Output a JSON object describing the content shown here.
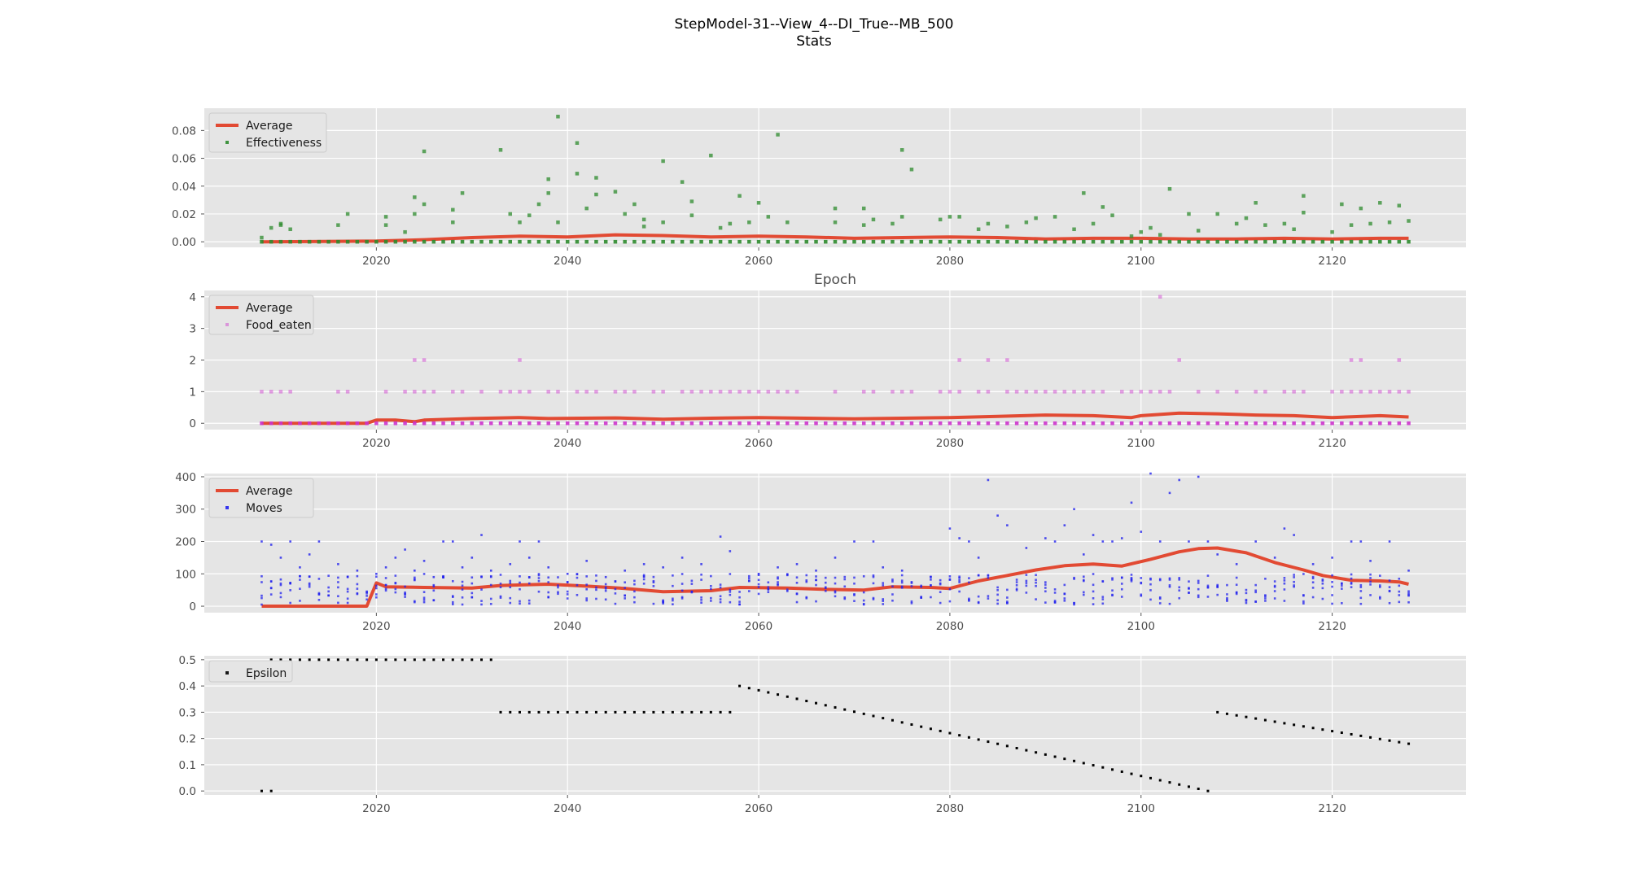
{
  "figure": {
    "title_line1": "StepModel-31--View_4--DI_True--MB_500",
    "title_line2": "Stats"
  },
  "colors": {
    "background": "#ffffff",
    "panel": "#e5e5e5",
    "grid": "#ffffff",
    "average": "#e24a33",
    "effectiveness": "#2e8b2e",
    "food": "#cc33cc",
    "moves": "#2222ee",
    "epsilon": "#000000"
  },
  "chart_data": [
    {
      "type": "scatter",
      "x_range": [
        2008,
        2128
      ],
      "xlim": [
        2002,
        2134
      ],
      "ylim": [
        -0.004,
        0.096
      ],
      "xticks": [
        2020,
        2040,
        2060,
        2080,
        2100,
        2120
      ],
      "yticks": [
        "0.00",
        "0.02",
        "0.04",
        "0.06",
        "0.08"
      ],
      "xlabel": "Epoch",
      "ylabel": "",
      "legend": [
        "Average",
        "Effectiveness"
      ],
      "legend_position": "upper-left",
      "grid": true,
      "series": [
        {
          "name": "Average",
          "kind": "line",
          "values_note": "",
          "x": [
            2008,
            2020,
            2025,
            2030,
            2035,
            2040,
            2045,
            2050,
            2055,
            2060,
            2065,
            2070,
            2075,
            2080,
            2085,
            2090,
            2095,
            2100,
            2105,
            2110,
            2115,
            2120,
            2125,
            2128
          ],
          "y": [
            0.0,
            0.0005,
            0.0015,
            0.003,
            0.004,
            0.0035,
            0.005,
            0.0045,
            0.0035,
            0.004,
            0.0035,
            0.0025,
            0.003,
            0.0035,
            0.003,
            0.002,
            0.0025,
            0.0025,
            0.002,
            0.002,
            0.0025,
            0.002,
            0.0025,
            0.0025
          ]
        },
        {
          "name": "Effectiveness",
          "kind": "scatter",
          "x": [
            2008,
            2009,
            2010,
            2010,
            2011,
            2016,
            2017,
            2021,
            2021,
            2023,
            2024,
            2024,
            2025,
            2025,
            2028,
            2028,
            2029,
            2033,
            2034,
            2035,
            2036,
            2037,
            2038,
            2038,
            2039,
            2039,
            2041,
            2041,
            2042,
            2043,
            2043,
            2045,
            2046,
            2047,
            2048,
            2048,
            2050,
            2050,
            2052,
            2053,
            2053,
            2055,
            2056,
            2057,
            2058,
            2059,
            2060,
            2061,
            2062,
            2063,
            2068,
            2068,
            2071,
            2071,
            2072,
            2074,
            2075,
            2075,
            2076,
            2079,
            2080,
            2081,
            2083,
            2084,
            2086,
            2088,
            2089,
            2091,
            2093,
            2094,
            2095,
            2096,
            2097,
            2099,
            2100,
            2101,
            2102,
            2103,
            2105,
            2106,
            2108,
            2110,
            2111,
            2112,
            2113,
            2115,
            2116,
            2117,
            2117,
            2120,
            2121,
            2122,
            2123,
            2124,
            2125,
            2126,
            2127,
            2128
          ],
          "y": [
            0.003,
            0.01,
            0.013,
            0.012,
            0.009,
            0.012,
            0.02,
            0.018,
            0.012,
            0.007,
            0.032,
            0.02,
            0.065,
            0.027,
            0.023,
            0.014,
            0.035,
            0.066,
            0.02,
            0.014,
            0.019,
            0.027,
            0.045,
            0.035,
            0.09,
            0.014,
            0.071,
            0.049,
            0.024,
            0.046,
            0.034,
            0.036,
            0.02,
            0.027,
            0.016,
            0.011,
            0.058,
            0.014,
            0.043,
            0.029,
            0.019,
            0.062,
            0.01,
            0.013,
            0.033,
            0.014,
            0.028,
            0.018,
            0.077,
            0.014,
            0.024,
            0.014,
            0.024,
            0.012,
            0.016,
            0.013,
            0.066,
            0.018,
            0.052,
            0.016,
            0.018,
            0.018,
            0.009,
            0.013,
            0.011,
            0.014,
            0.017,
            0.018,
            0.009,
            0.035,
            0.013,
            0.025,
            0.019,
            0.004,
            0.007,
            0.01,
            0.005,
            0.038,
            0.02,
            0.008,
            0.02,
            0.013,
            0.017,
            0.028,
            0.012,
            0.013,
            0.009,
            0.033,
            0.021,
            0.007,
            0.027,
            0.012,
            0.024,
            0.013,
            0.028,
            0.014,
            0.026,
            0.015
          ]
        }
      ]
    },
    {
      "type": "scatter",
      "x_range": [
        2008,
        2128
      ],
      "xlim": [
        2002,
        2134
      ],
      "ylim": [
        -0.2,
        4.2
      ],
      "xticks": [
        2020,
        2040,
        2060,
        2080,
        2100,
        2120
      ],
      "yticks": [
        "0",
        "1",
        "2",
        "3",
        "4"
      ],
      "legend": [
        "Average",
        "Food_eaten"
      ],
      "legend_position": "upper-left",
      "grid": true,
      "series": [
        {
          "name": "Average",
          "kind": "line",
          "x": [
            2008,
            2019,
            2020,
            2022,
            2024,
            2025,
            2030,
            2035,
            2038,
            2045,
            2050,
            2055,
            2060,
            2065,
            2070,
            2075,
            2080,
            2085,
            2090,
            2095,
            2099,
            2100,
            2104,
            2108,
            2112,
            2116,
            2120,
            2125,
            2128
          ],
          "y": [
            0.0,
            0.0,
            0.1,
            0.1,
            0.05,
            0.1,
            0.15,
            0.18,
            0.15,
            0.17,
            0.13,
            0.16,
            0.18,
            0.16,
            0.14,
            0.16,
            0.18,
            0.22,
            0.26,
            0.24,
            0.18,
            0.24,
            0.32,
            0.3,
            0.26,
            0.24,
            0.18,
            0.24,
            0.2
          ]
        },
        {
          "name": "Food_eaten",
          "kind": "scatter",
          "x": [
            2008,
            2009,
            2010,
            2011,
            2016,
            2017,
            2021,
            2023,
            2024,
            2025,
            2026,
            2028,
            2029,
            2031,
            2033,
            2034,
            2035,
            2036,
            2038,
            2039,
            2041,
            2042,
            2043,
            2045,
            2046,
            2047,
            2049,
            2050,
            2052,
            2053,
            2054,
            2055,
            2056,
            2057,
            2058,
            2059,
            2060,
            2061,
            2062,
            2063,
            2064,
            2068,
            2071,
            2072,
            2074,
            2075,
            2076,
            2079,
            2080,
            2081,
            2083,
            2084,
            2086,
            2087,
            2088,
            2089,
            2090,
            2091,
            2092,
            2093,
            2094,
            2095,
            2096,
            2098,
            2099,
            2100,
            2101,
            2102,
            2103,
            2106,
            2108,
            2110,
            2112,
            2113,
            2115,
            2116,
            2117,
            2120,
            2121,
            2122,
            2123,
            2124,
            2125,
            2126,
            2127,
            2128,
            2024,
            2025,
            2035,
            2081,
            2084,
            2086,
            2104,
            2122,
            2123,
            2127,
            2102
          ],
          "y": [
            1,
            1,
            1,
            1,
            1,
            1,
            1,
            1,
            1,
            1,
            1,
            1,
            1,
            1,
            1,
            1,
            1,
            1,
            1,
            1,
            1,
            1,
            1,
            1,
            1,
            1,
            1,
            1,
            1,
            1,
            1,
            1,
            1,
            1,
            1,
            1,
            1,
            1,
            1,
            1,
            1,
            1,
            1,
            1,
            1,
            1,
            1,
            1,
            1,
            1,
            1,
            1,
            1,
            1,
            1,
            1,
            1,
            1,
            1,
            1,
            1,
            1,
            1,
            1,
            1,
            1,
            1,
            1,
            1,
            1,
            1,
            1,
            1,
            1,
            1,
            1,
            1,
            1,
            1,
            1,
            1,
            1,
            1,
            1,
            1,
            1,
            2,
            2,
            2,
            2,
            2,
            2,
            2,
            2,
            2,
            2,
            4
          ]
        }
      ]
    },
    {
      "type": "scatter",
      "x_range": [
        2008,
        2128
      ],
      "xlim": [
        2002,
        2134
      ],
      "ylim": [
        -20,
        410
      ],
      "xticks": [
        2020,
        2040,
        2060,
        2080,
        2100,
        2120
      ],
      "yticks": [
        "0",
        "100",
        "200",
        "300",
        "400"
      ],
      "legend": [
        "Average",
        "Moves"
      ],
      "legend_position": "upper-left",
      "grid": true,
      "series": [
        {
          "name": "Average",
          "kind": "line",
          "x": [
            2008,
            2019,
            2020,
            2021,
            2025,
            2030,
            2033,
            2038,
            2042,
            2046,
            2050,
            2055,
            2058,
            2063,
            2067,
            2071,
            2074,
            2078,
            2080,
            2083,
            2086,
            2089,
            2092,
            2095,
            2098,
            2101,
            2104,
            2106,
            2108,
            2111,
            2114,
            2117,
            2119,
            2122,
            2125,
            2127,
            2128
          ],
          "y": [
            0,
            0,
            72,
            60,
            58,
            56,
            64,
            68,
            62,
            55,
            45,
            48,
            58,
            56,
            52,
            50,
            60,
            58,
            55,
            78,
            95,
            112,
            125,
            130,
            124,
            145,
            168,
            178,
            180,
            165,
            135,
            112,
            95,
            80,
            78,
            75,
            68
          ]
        },
        {
          "name": "Moves",
          "kind": "scatter",
          "x": [
            2008,
            2008,
            2009,
            2010,
            2011,
            2012,
            2013,
            2014,
            2016,
            2017,
            2018,
            2020,
            2021,
            2022,
            2023,
            2024,
            2025,
            2026,
            2027,
            2028,
            2029,
            2030,
            2031,
            2032,
            2034,
            2035,
            2036,
            2037,
            2038,
            2040,
            2042,
            2044,
            2046,
            2048,
            2050,
            2052,
            2054,
            2056,
            2057,
            2060,
            2062,
            2064,
            2066,
            2068,
            2070,
            2072,
            2073,
            2075,
            2078,
            2080,
            2081,
            2082,
            2083,
            2084,
            2085,
            2086,
            2088,
            2090,
            2091,
            2092,
            2093,
            2094,
            2095,
            2096,
            2097,
            2098,
            2099,
            2100,
            2101,
            2102,
            2103,
            2104,
            2105,
            2106,
            2107,
            2108,
            2110,
            2112,
            2114,
            2115,
            2116,
            2118,
            2120,
            2122,
            2123,
            2124,
            2126,
            2128
          ],
          "y": [
            200,
            280,
            190,
            150,
            200,
            120,
            160,
            200,
            130,
            90,
            110,
            100,
            120,
            150,
            175,
            110,
            140,
            90,
            200,
            200,
            120,
            150,
            220,
            110,
            130,
            200,
            150,
            200,
            120,
            100,
            140,
            90,
            110,
            130,
            120,
            150,
            130,
            215,
            170,
            100,
            120,
            130,
            110,
            150,
            200,
            200,
            120,
            110,
            90,
            240,
            210,
            200,
            150,
            390,
            280,
            250,
            180,
            210,
            200,
            250,
            300,
            160,
            220,
            200,
            200,
            210,
            320,
            230,
            410,
            200,
            350,
            390,
            200,
            400,
            200,
            160,
            130,
            200,
            150,
            240,
            220,
            130,
            150,
            200,
            200,
            140,
            200,
            110
          ]
        }
      ]
    },
    {
      "type": "scatter",
      "x_range": [
        2008,
        2128
      ],
      "xlim": [
        2002,
        2134
      ],
      "ylim": [
        -0.015,
        0.515
      ],
      "xticks": [
        2020,
        2040,
        2060,
        2080,
        2100,
        2120
      ],
      "yticks": [
        "0.0",
        "0.1",
        "0.2",
        "0.3",
        "0.4",
        "0.5"
      ],
      "legend": [
        "Epsilon"
      ],
      "legend_position": "upper-left",
      "grid": true,
      "series": [
        {
          "name": "Epsilon",
          "kind": "scatter",
          "segments": [
            {
              "x_start": 2008,
              "x_end": 2008,
              "y_start": 0.0,
              "y_end": 0.0
            },
            {
              "x_start": 2009,
              "x_end": 2032,
              "y_start": 0.5,
              "y_end": 0.5
            },
            {
              "x_start": 2033,
              "x_end": 2057,
              "y_start": 0.3,
              "y_end": 0.3
            },
            {
              "x_start": 2058,
              "x_end": 2107,
              "y_start": 0.4,
              "y_end": 0.0
            },
            {
              "x_start": 2108,
              "x_end": 2128,
              "y_start": 0.3,
              "y_end": 0.18
            }
          ]
        }
      ]
    }
  ]
}
